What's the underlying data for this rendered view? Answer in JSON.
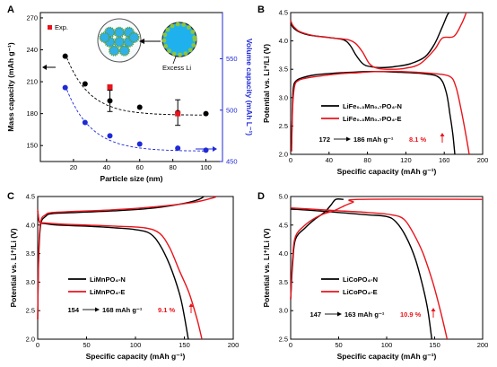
{
  "colors": {
    "black": "#000000",
    "red": "#e8141b",
    "blue": "#1f2ad6",
    "dark_red": "#b22020"
  },
  "panels": {
    "A": {
      "label": "A"
    },
    "B": {
      "label": "B"
    },
    "C": {
      "label": "C"
    },
    "D": {
      "label": "D"
    }
  },
  "chart_data": [
    {
      "id": "A",
      "type": "scatter",
      "xlabel": "Particle size (nm)",
      "ylabel": "Mass capacity (mAh g⁻¹)",
      "y2label": "Volume capacity (mAh L⁻¹)",
      "xlim": [
        0,
        110
      ],
      "ylim": [
        135,
        275
      ],
      "y2lim": [
        450,
        595
      ],
      "xticks": [
        20,
        40,
        60,
        80,
        100
      ],
      "yticks": [
        150,
        180,
        210,
        240,
        270
      ],
      "y2ticks": [
        450,
        500,
        550
      ],
      "legend": "Exp.",
      "inset_label": "Excess Li",
      "series": [
        {
          "name": "",
          "axis": "left",
          "color": "#000000",
          "marker": "circle",
          "x": [
            15,
            27,
            42,
            60,
            83,
            100
          ],
          "y": [
            234,
            208,
            192,
            186,
            181,
            180
          ],
          "err": [
            0,
            0,
            10,
            0,
            12,
            0
          ]
        },
        {
          "name": "",
          "axis": "right",
          "color": "#1f2ad6",
          "marker": "circle",
          "x": [
            15,
            27,
            42,
            60,
            83,
            100
          ],
          "y": [
            522,
            488,
            475,
            467,
            463,
            461
          ]
        },
        {
          "name": "Exp.",
          "axis": "left",
          "color": "#e8141b",
          "marker": "square",
          "x": [
            42,
            83
          ],
          "y": [
            205,
            180
          ]
        }
      ]
    },
    {
      "id": "B",
      "type": "line",
      "xlabel": "Specific capacity (mAh g⁻¹)",
      "ylabel": "Potential vs. Li⁺/Li (V)",
      "xlim": [
        0,
        200
      ],
      "ylim": [
        2.0,
        4.5
      ],
      "xticks": [
        0,
        40,
        80,
        120,
        160,
        200
      ],
      "yticks": [
        2.0,
        2.5,
        3.0,
        3.5,
        4.0,
        4.5
      ],
      "legend": [
        "LiFe₀.₃Mn₀.₇PO₄-N",
        "LiFe₀.₃Mn₀.₇PO₄-E"
      ],
      "annotation": {
        "from": "172",
        "to": "186 mAh g⁻¹",
        "pct": "8.1 %"
      },
      "series": [
        {
          "name": "LiFe₀.₃Mn₀.₇PO₄-N",
          "color": "#000000",
          "curves": [
            [
              [
                1,
                2.18
              ],
              [
                2,
                2.9
              ],
              [
                3,
                3.2
              ],
              [
                6,
                3.3
              ],
              [
                12,
                3.35
              ],
              [
                25,
                3.4
              ],
              [
                45,
                3.43
              ],
              [
                65,
                3.45
              ],
              [
                85,
                3.46
              ],
              [
                110,
                3.45
              ],
              [
                140,
                3.42
              ],
              [
                155,
                3.35
              ],
              [
                162,
                3.1
              ],
              [
                166,
                2.7
              ],
              [
                169,
                2.35
              ],
              [
                171,
                2.0
              ]
            ],
            [
              [
                0,
                4.32
              ],
              [
                2,
                4.25
              ],
              [
                5,
                4.2
              ],
              [
                10,
                4.15
              ],
              [
                20,
                4.1
              ],
              [
                40,
                4.06
              ],
              [
                55,
                4.02
              ],
              [
                62,
                3.92
              ],
              [
                68,
                3.75
              ],
              [
                75,
                3.6
              ],
              [
                82,
                3.55
              ],
              [
                95,
                3.53
              ],
              [
                110,
                3.55
              ],
              [
                125,
                3.6
              ],
              [
                140,
                3.72
              ],
              [
                150,
                3.95
              ],
              [
                158,
                4.25
              ],
              [
                163,
                4.45
              ],
              [
                165,
                4.5
              ]
            ]
          ]
        },
        {
          "name": "LiFe₀.₃Mn₀.₇PO₄-E",
          "color": "#e8141b",
          "curves": [
            [
              [
                1,
                2.05
              ],
              [
                2,
                2.8
              ],
              [
                4,
                3.2
              ],
              [
                8,
                3.3
              ],
              [
                15,
                3.34
              ],
              [
                30,
                3.38
              ],
              [
                50,
                3.42
              ],
              [
                70,
                3.44
              ],
              [
                90,
                3.46
              ],
              [
                115,
                3.46
              ],
              [
                145,
                3.43
              ],
              [
                165,
                3.38
              ],
              [
                172,
                3.2
              ],
              [
                178,
                2.75
              ],
              [
                183,
                2.3
              ],
              [
                186,
                2.0
              ]
            ],
            [
              [
                0,
                4.36
              ],
              [
                2,
                4.28
              ],
              [
                5,
                4.22
              ],
              [
                10,
                4.16
              ],
              [
                25,
                4.09
              ],
              [
                45,
                4.05
              ],
              [
                60,
                4.02
              ],
              [
                68,
                3.95
              ],
              [
                75,
                3.8
              ],
              [
                82,
                3.6
              ],
              [
                90,
                3.52
              ],
              [
                105,
                3.5
              ],
              [
                120,
                3.52
              ],
              [
                135,
                3.6
              ],
              [
                150,
                3.85
              ],
              [
                158,
                4.05
              ],
              [
                170,
                4.08
              ],
              [
                178,
                4.3
              ],
              [
                183,
                4.5
              ]
            ]
          ]
        }
      ]
    },
    {
      "id": "C",
      "type": "line",
      "xlabel": "Specific capacity (mAh g⁻¹)",
      "ylabel": "Potential vs. Li⁺/Li (V)",
      "xlim": [
        0,
        200
      ],
      "ylim": [
        2.0,
        4.5
      ],
      "xticks": [
        0,
        50,
        100,
        150,
        200
      ],
      "yticks": [
        2.0,
        2.5,
        3.0,
        3.5,
        4.0,
        4.5
      ],
      "legend": [
        "LiMnPO₄-N",
        "LiMnPO₄-E"
      ],
      "annotation": {
        "from": "154",
        "to": "168 mAh g⁻¹",
        "pct": "9.1 %"
      },
      "series": [
        {
          "name": "LiMnPO₄-N",
          "color": "#000000",
          "curves": [
            [
              [
                0,
                4.25
              ],
              [
                1,
                4.1
              ],
              [
                2,
                4.05
              ],
              [
                5,
                4.03
              ],
              [
                20,
                4.0
              ],
              [
                50,
                3.98
              ],
              [
                80,
                3.95
              ],
              [
                100,
                3.92
              ],
              [
                115,
                3.85
              ],
              [
                125,
                3.65
              ],
              [
                135,
                3.3
              ],
              [
                145,
                2.8
              ],
              [
                150,
                2.4
              ],
              [
                154,
                2.0
              ]
            ],
            [
              [
                0,
                2.35
              ],
              [
                1,
                3.4
              ],
              [
                3,
                4.0
              ],
              [
                8,
                4.15
              ],
              [
                15,
                4.2
              ],
              [
                40,
                4.22
              ],
              [
                80,
                4.25
              ],
              [
                120,
                4.3
              ],
              [
                150,
                4.38
              ],
              [
                165,
                4.45
              ],
              [
                170,
                4.5
              ]
            ]
          ]
        },
        {
          "name": "LiMnPO₄-E",
          "color": "#e8141b",
          "curves": [
            [
              [
                0,
                4.27
              ],
              [
                1,
                4.12
              ],
              [
                2,
                4.05
              ],
              [
                5,
                4.04
              ],
              [
                20,
                4.02
              ],
              [
                50,
                4.0
              ],
              [
                80,
                3.98
              ],
              [
                110,
                3.95
              ],
              [
                125,
                3.85
              ],
              [
                135,
                3.6
              ],
              [
                145,
                3.2
              ],
              [
                155,
                2.8
              ],
              [
                163,
                2.35
              ],
              [
                168,
                2.0
              ]
            ],
            [
              [
                0,
                2.35
              ],
              [
                1,
                3.5
              ],
              [
                3,
                4.05
              ],
              [
                8,
                4.18
              ],
              [
                15,
                4.22
              ],
              [
                40,
                4.24
              ],
              [
                80,
                4.27
              ],
              [
                120,
                4.32
              ],
              [
                160,
                4.4
              ],
              [
                180,
                4.48
              ],
              [
                182,
                4.5
              ]
            ]
          ]
        }
      ]
    },
    {
      "id": "D",
      "type": "line",
      "xlabel": "Specific capacity (mAh g⁻¹)",
      "ylabel": "Potential vs. Li⁺/Li (V)",
      "xlim": [
        0,
        200
      ],
      "ylim": [
        2.5,
        5.0
      ],
      "xticks": [
        0,
        50,
        100,
        150,
        200
      ],
      "yticks": [
        2.5,
        3.0,
        3.5,
        4.0,
        4.5,
        5.0
      ],
      "legend": [
        "LiCoPO₄-N",
        "LiCoPO₄-E"
      ],
      "annotation": {
        "from": "147",
        "to": "163 mAh g⁻¹",
        "pct": "10.9 %"
      },
      "series": [
        {
          "name": "LiCoPO₄-N",
          "color": "#000000",
          "curves": [
            [
              [
                0,
                4.78
              ],
              [
                20,
                4.76
              ],
              [
                50,
                4.72
              ],
              [
                80,
                4.68
              ],
              [
                100,
                4.65
              ],
              [
                110,
                4.55
              ],
              [
                120,
                4.3
              ],
              [
                130,
                3.9
              ],
              [
                138,
                3.4
              ],
              [
                143,
                3.0
              ],
              [
                147,
                2.5
              ]
            ],
            [
              [
                0,
                3.2
              ],
              [
                2,
                3.8
              ],
              [
                5,
                4.25
              ],
              [
                15,
                4.45
              ],
              [
                25,
                4.6
              ],
              [
                35,
                4.72
              ],
              [
                42,
                4.85
              ],
              [
                47,
                4.95
              ],
              [
                55,
                4.95
              ]
            ]
          ]
        },
        {
          "name": "LiCoPO₄-E",
          "color": "#e8141b",
          "curves": [
            [
              [
                0,
                4.8
              ],
              [
                20,
                4.78
              ],
              [
                50,
                4.75
              ],
              [
                80,
                4.72
              ],
              [
                105,
                4.68
              ],
              [
                118,
                4.6
              ],
              [
                128,
                4.35
              ],
              [
                138,
                4.0
              ],
              [
                148,
                3.5
              ],
              [
                156,
                3.0
              ],
              [
                163,
                2.5
              ]
            ],
            [
              [
                0,
                3.2
              ],
              [
                2,
                3.9
              ],
              [
                5,
                4.3
              ],
              [
                15,
                4.5
              ],
              [
                25,
                4.62
              ],
              [
                35,
                4.7
              ],
              [
                45,
                4.75
              ],
              [
                55,
                4.83
              ],
              [
                65,
                4.9
              ],
              [
                72,
                4.95
              ],
              [
                200,
                4.95
              ]
            ]
          ]
        }
      ]
    }
  ]
}
